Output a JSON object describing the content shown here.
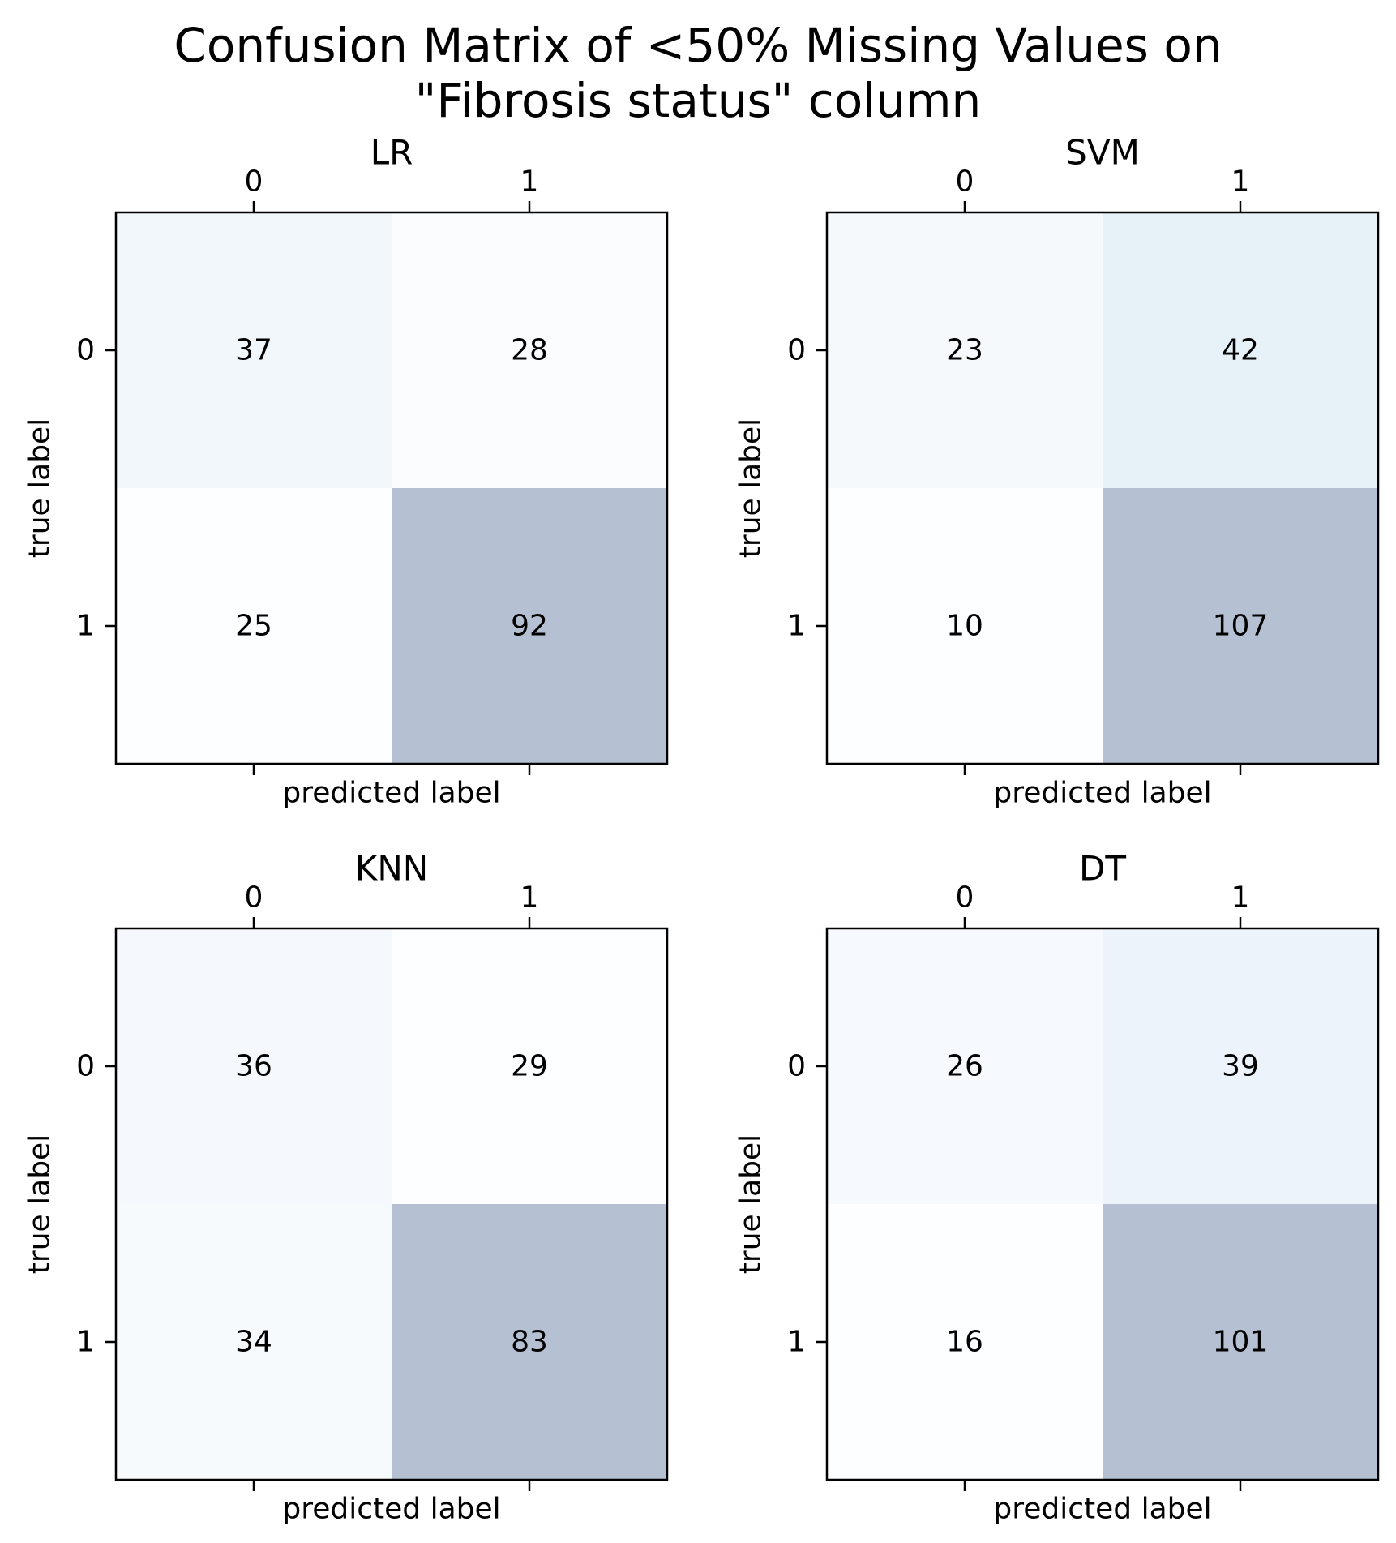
{
  "figure": {
    "title": "Confusion Matrix of <50% Missing Values on\n\"Fibrosis status\" column"
  },
  "chart_data": [
    {
      "type": "heatmap",
      "title": "LR",
      "xlabel": "predicted label",
      "ylabel": "true label",
      "x_ticks": [
        "0",
        "1"
      ],
      "y_ticks": [
        "0",
        "1"
      ],
      "values": [
        [
          37,
          28
        ],
        [
          25,
          92
        ]
      ],
      "colormap": "Blues",
      "alpha": 0.3,
      "x_ticks_position": "top and bottom"
    },
    {
      "type": "heatmap",
      "title": "SVM",
      "xlabel": "predicted label",
      "ylabel": "true label",
      "x_ticks": [
        "0",
        "1"
      ],
      "y_ticks": [
        "0",
        "1"
      ],
      "values": [
        [
          23,
          42
        ],
        [
          10,
          107
        ]
      ],
      "colormap": "Blues",
      "alpha": 0.3,
      "x_ticks_position": "top and bottom"
    },
    {
      "type": "heatmap",
      "title": "KNN",
      "xlabel": "predicted label",
      "ylabel": "true label",
      "x_ticks": [
        "0",
        "1"
      ],
      "y_ticks": [
        "0",
        "1"
      ],
      "values": [
        [
          36,
          29
        ],
        [
          34,
          83
        ]
      ],
      "colormap": "Blues",
      "alpha": 0.3,
      "x_ticks_position": "top and bottom"
    },
    {
      "type": "heatmap",
      "title": "DT",
      "xlabel": "predicted label",
      "ylabel": "true label",
      "x_ticks": [
        "0",
        "1"
      ],
      "y_ticks": [
        "0",
        "1"
      ],
      "values": [
        [
          26,
          39
        ],
        [
          16,
          101
        ]
      ],
      "colormap": "Blues",
      "alpha": 0.3,
      "x_ticks_position": "top and bottom"
    }
  ]
}
